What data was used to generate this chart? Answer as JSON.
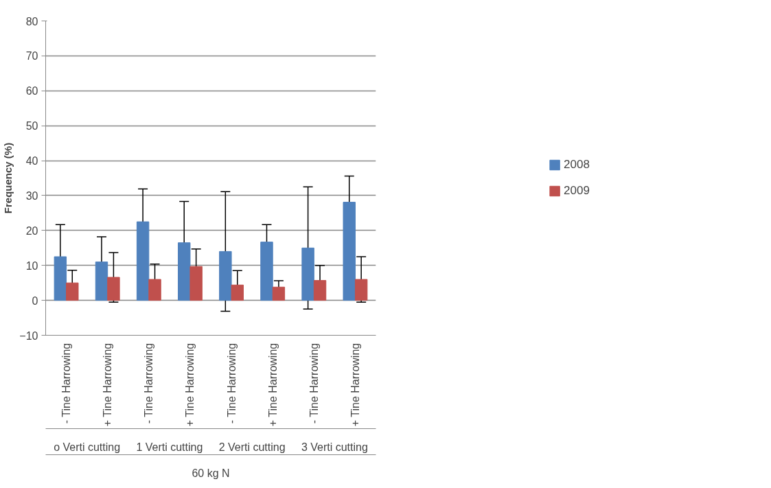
{
  "chart_data": {
    "type": "bar",
    "categories": [
      "- Tine Harrowing",
      "+ Tine Harrowing",
      "- Tine Harrowing",
      "+ Tine Harrowing",
      "- Tine Harrowing",
      "+ Tine Harrowing",
      "- Tine Harrowing",
      "+ Tine Harrowing"
    ],
    "series": [
      {
        "name": "2008",
        "color": "#4f81bd",
        "values": [
          12.5,
          11,
          22.5,
          16.5,
          14,
          16.7,
          15,
          28.1
        ],
        "errors": [
          9.2,
          7.2,
          9.4,
          11.8,
          17.1,
          5,
          17.5,
          7.5
        ]
      },
      {
        "name": "2009",
        "color": "#c0504d",
        "values": [
          5,
          6.6,
          6,
          9.7,
          4.4,
          3.8,
          5.7,
          6
        ],
        "errors": [
          3.6,
          7.1,
          4.4,
          5,
          4.1,
          1.8,
          4.3,
          6.5
        ]
      }
    ],
    "ylabel": "Frequency (%)",
    "ylim": [
      -10,
      80
    ],
    "yticks": [
      -10,
      0,
      10,
      20,
      30,
      40,
      50,
      60,
      70,
      80
    ],
    "grid": "y",
    "legend": "right",
    "annotations": [
      "o Verti cutting",
      "1 Verti cutting",
      "2 Verti cutting",
      "3 Verti cutting",
      "60 kg N"
    ]
  }
}
